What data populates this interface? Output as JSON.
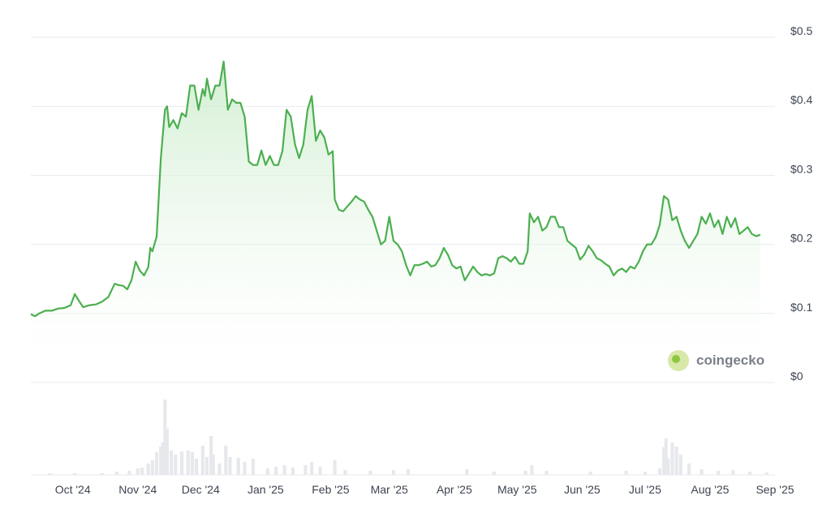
{
  "chart_data": {
    "type": "area",
    "title": "",
    "xlabel": "",
    "ylabel": "",
    "y_ticks": [
      "$0",
      "$0.1",
      "$0.2",
      "$0.3",
      "$0.4",
      "$0.5"
    ],
    "y_tick_values": [
      0,
      0.1,
      0.2,
      0.3,
      0.4,
      0.5
    ],
    "ylim": [
      0,
      0.5
    ],
    "x_ticks": [
      "Oct '24",
      "Nov '24",
      "Dec '24",
      "Jan '25",
      "Feb '25",
      "Mar '25",
      "Apr '25",
      "May '25",
      "Jun '25",
      "Jul '25",
      "Aug '25",
      "Sep '25"
    ],
    "x_tick_dates": [
      "2024-10-01",
      "2024-11-01",
      "2024-12-01",
      "2025-01-01",
      "2025-02-01",
      "2025-03-01",
      "2025-04-01",
      "2025-05-01",
      "2025-06-01",
      "2025-07-01",
      "2025-08-01",
      "2025-09-01"
    ],
    "xlim": [
      "2024-09-11",
      "2025-09-01"
    ],
    "grid": true,
    "line_color": "#4caf50",
    "area_color": "#e3f5e3",
    "volume_color": "#e6e8ec",
    "watermark": "coingecko",
    "series": [
      {
        "values": [
          [
            "2024-09-11",
            0.099
          ],
          [
            "2024-09-13",
            0.096
          ],
          [
            "2024-09-15",
            0.1
          ],
          [
            "2024-09-18",
            0.104
          ],
          [
            "2024-09-21",
            0.104
          ],
          [
            "2024-09-24",
            0.107
          ],
          [
            "2024-09-27",
            0.108
          ],
          [
            "2024-09-30",
            0.112
          ],
          [
            "2024-10-02",
            0.128
          ],
          [
            "2024-10-04",
            0.118
          ],
          [
            "2024-10-06",
            0.109
          ],
          [
            "2024-10-09",
            0.112
          ],
          [
            "2024-10-12",
            0.113
          ],
          [
            "2024-10-15",
            0.117
          ],
          [
            "2024-10-18",
            0.124
          ],
          [
            "2024-10-21",
            0.143
          ],
          [
            "2024-10-23",
            0.141
          ],
          [
            "2024-10-25",
            0.14
          ],
          [
            "2024-10-27",
            0.135
          ],
          [
            "2024-10-29",
            0.148
          ],
          [
            "2024-10-31",
            0.175
          ],
          [
            "2024-11-02",
            0.162
          ],
          [
            "2024-11-04",
            0.155
          ],
          [
            "2024-11-06",
            0.167
          ],
          [
            "2024-11-07",
            0.195
          ],
          [
            "2024-11-08",
            0.19
          ],
          [
            "2024-11-10",
            0.211
          ],
          [
            "2024-11-12",
            0.325
          ],
          [
            "2024-11-13",
            0.36
          ],
          [
            "2024-11-14",
            0.395
          ],
          [
            "2024-11-15",
            0.4
          ],
          [
            "2024-11-16",
            0.37
          ],
          [
            "2024-11-18",
            0.38
          ],
          [
            "2024-11-20",
            0.368
          ],
          [
            "2024-11-22",
            0.39
          ],
          [
            "2024-11-24",
            0.385
          ],
          [
            "2024-11-26",
            0.43
          ],
          [
            "2024-11-28",
            0.43
          ],
          [
            "2024-11-30",
            0.395
          ],
          [
            "2024-12-02",
            0.425
          ],
          [
            "2024-12-03",
            0.415
          ],
          [
            "2024-12-04",
            0.44
          ],
          [
            "2024-12-06",
            0.41
          ],
          [
            "2024-12-08",
            0.43
          ],
          [
            "2024-12-10",
            0.43
          ],
          [
            "2024-12-12",
            0.465
          ],
          [
            "2024-12-14",
            0.395
          ],
          [
            "2024-12-16",
            0.41
          ],
          [
            "2024-12-18",
            0.405
          ],
          [
            "2024-12-20",
            0.405
          ],
          [
            "2024-12-22",
            0.385
          ],
          [
            "2024-12-24",
            0.32
          ],
          [
            "2024-12-26",
            0.315
          ],
          [
            "2024-12-28",
            0.315
          ],
          [
            "2024-12-30",
            0.336
          ],
          [
            "2025-01-01",
            0.315
          ],
          [
            "2025-01-03",
            0.328
          ],
          [
            "2025-01-05",
            0.315
          ],
          [
            "2025-01-07",
            0.315
          ],
          [
            "2025-01-09",
            0.335
          ],
          [
            "2025-01-11",
            0.395
          ],
          [
            "2025-01-13",
            0.385
          ],
          [
            "2025-01-15",
            0.345
          ],
          [
            "2025-01-17",
            0.325
          ],
          [
            "2025-01-19",
            0.345
          ],
          [
            "2025-01-21",
            0.395
          ],
          [
            "2025-01-23",
            0.415
          ],
          [
            "2025-01-25",
            0.35
          ],
          [
            "2025-01-27",
            0.365
          ],
          [
            "2025-01-29",
            0.355
          ],
          [
            "2025-01-31",
            0.33
          ],
          [
            "2025-02-02",
            0.335
          ],
          [
            "2025-02-03",
            0.265
          ],
          [
            "2025-02-05",
            0.25
          ],
          [
            "2025-02-07",
            0.248
          ],
          [
            "2025-02-09",
            0.255
          ],
          [
            "2025-02-11",
            0.262
          ],
          [
            "2025-02-13",
            0.27
          ],
          [
            "2025-02-15",
            0.265
          ],
          [
            "2025-02-17",
            0.262
          ],
          [
            "2025-02-19",
            0.25
          ],
          [
            "2025-02-21",
            0.24
          ],
          [
            "2025-02-23",
            0.22
          ],
          [
            "2025-02-25",
            0.2
          ],
          [
            "2025-02-27",
            0.205
          ],
          [
            "2025-03-01",
            0.24
          ],
          [
            "2025-03-03",
            0.205
          ],
          [
            "2025-03-05",
            0.2
          ],
          [
            "2025-03-07",
            0.19
          ],
          [
            "2025-03-09",
            0.17
          ],
          [
            "2025-03-11",
            0.155
          ],
          [
            "2025-03-13",
            0.17
          ],
          [
            "2025-03-15",
            0.17
          ],
          [
            "2025-03-17",
            0.172
          ],
          [
            "2025-03-19",
            0.175
          ],
          [
            "2025-03-21",
            0.168
          ],
          [
            "2025-03-23",
            0.17
          ],
          [
            "2025-03-25",
            0.18
          ],
          [
            "2025-03-27",
            0.195
          ],
          [
            "2025-03-29",
            0.185
          ],
          [
            "2025-03-31",
            0.17
          ],
          [
            "2025-04-02",
            0.165
          ],
          [
            "2025-04-04",
            0.168
          ],
          [
            "2025-04-06",
            0.148
          ],
          [
            "2025-04-08",
            0.158
          ],
          [
            "2025-04-10",
            0.168
          ],
          [
            "2025-04-12",
            0.16
          ],
          [
            "2025-04-14",
            0.155
          ],
          [
            "2025-04-16",
            0.157
          ],
          [
            "2025-04-18",
            0.155
          ],
          [
            "2025-04-20",
            0.158
          ],
          [
            "2025-04-22",
            0.18
          ],
          [
            "2025-04-24",
            0.183
          ],
          [
            "2025-04-26",
            0.18
          ],
          [
            "2025-04-28",
            0.175
          ],
          [
            "2025-04-30",
            0.182
          ],
          [
            "2025-05-02",
            0.172
          ],
          [
            "2025-05-04",
            0.172
          ],
          [
            "2025-05-06",
            0.19
          ],
          [
            "2025-05-07",
            0.245
          ],
          [
            "2025-05-09",
            0.232
          ],
          [
            "2025-05-11",
            0.24
          ],
          [
            "2025-05-13",
            0.22
          ],
          [
            "2025-05-15",
            0.225
          ],
          [
            "2025-05-17",
            0.24
          ],
          [
            "2025-05-19",
            0.24
          ],
          [
            "2025-05-21",
            0.225
          ],
          [
            "2025-05-23",
            0.225
          ],
          [
            "2025-05-25",
            0.205
          ],
          [
            "2025-05-27",
            0.2
          ],
          [
            "2025-05-29",
            0.195
          ],
          [
            "2025-05-31",
            0.178
          ],
          [
            "2025-06-02",
            0.185
          ],
          [
            "2025-06-04",
            0.198
          ],
          [
            "2025-06-06",
            0.19
          ],
          [
            "2025-06-08",
            0.18
          ],
          [
            "2025-06-10",
            0.177
          ],
          [
            "2025-06-12",
            0.172
          ],
          [
            "2025-06-14",
            0.168
          ],
          [
            "2025-06-16",
            0.155
          ],
          [
            "2025-06-18",
            0.162
          ],
          [
            "2025-06-20",
            0.165
          ],
          [
            "2025-06-22",
            0.16
          ],
          [
            "2025-06-24",
            0.168
          ],
          [
            "2025-06-26",
            0.165
          ],
          [
            "2025-06-28",
            0.175
          ],
          [
            "2025-06-30",
            0.19
          ],
          [
            "2025-07-02",
            0.2
          ],
          [
            "2025-07-04",
            0.2
          ],
          [
            "2025-07-06",
            0.21
          ],
          [
            "2025-07-08",
            0.228
          ],
          [
            "2025-07-10",
            0.27
          ],
          [
            "2025-07-12",
            0.265
          ],
          [
            "2025-07-14",
            0.235
          ],
          [
            "2025-07-16",
            0.24
          ],
          [
            "2025-07-18",
            0.22
          ],
          [
            "2025-07-20",
            0.205
          ],
          [
            "2025-07-22",
            0.195
          ],
          [
            "2025-07-24",
            0.205
          ],
          [
            "2025-07-26",
            0.215
          ],
          [
            "2025-07-28",
            0.24
          ],
          [
            "2025-07-30",
            0.23
          ],
          [
            "2025-08-01",
            0.245
          ],
          [
            "2025-08-03",
            0.225
          ],
          [
            "2025-08-05",
            0.235
          ],
          [
            "2025-08-07",
            0.215
          ],
          [
            "2025-08-09",
            0.24
          ],
          [
            "2025-08-11",
            0.225
          ],
          [
            "2025-08-13",
            0.238
          ],
          [
            "2025-08-15",
            0.215
          ],
          [
            "2025-08-17",
            0.22
          ],
          [
            "2025-08-19",
            0.225
          ],
          [
            "2025-08-21",
            0.215
          ],
          [
            "2025-08-23",
            0.212
          ],
          [
            "2025-08-25",
            0.214
          ]
        ]
      }
    ],
    "volume": {
      "bar_width_days": 1,
      "values": [
        [
          "2024-09-20",
          0.02
        ],
        [
          "2024-10-02",
          0.02
        ],
        [
          "2024-10-15",
          0.02
        ],
        [
          "2024-10-22",
          0.04
        ],
        [
          "2024-10-28",
          0.05
        ],
        [
          "2024-11-01",
          0.08
        ],
        [
          "2024-11-03",
          0.09
        ],
        [
          "2024-11-06",
          0.14
        ],
        [
          "2024-11-08",
          0.18
        ],
        [
          "2024-11-10",
          0.28
        ],
        [
          "2024-11-12",
          0.35
        ],
        [
          "2024-11-13",
          0.4
        ],
        [
          "2024-11-14",
          0.93
        ],
        [
          "2024-11-15",
          0.57
        ],
        [
          "2024-11-17",
          0.3
        ],
        [
          "2024-11-19",
          0.25
        ],
        [
          "2024-11-22",
          0.29
        ],
        [
          "2024-11-25",
          0.3
        ],
        [
          "2024-11-27",
          0.28
        ],
        [
          "2024-11-29",
          0.2
        ],
        [
          "2024-12-02",
          0.36
        ],
        [
          "2024-12-04",
          0.22
        ],
        [
          "2024-12-06",
          0.48
        ],
        [
          "2024-12-07",
          0.25
        ],
        [
          "2024-12-10",
          0.14
        ],
        [
          "2024-12-13",
          0.36
        ],
        [
          "2024-12-15",
          0.22
        ],
        [
          "2024-12-19",
          0.21
        ],
        [
          "2024-12-22",
          0.16
        ],
        [
          "2024-12-26",
          0.2
        ],
        [
          "2025-01-02",
          0.08
        ],
        [
          "2025-01-06",
          0.1
        ],
        [
          "2025-01-10",
          0.12
        ],
        [
          "2025-01-14",
          0.09
        ],
        [
          "2025-01-20",
          0.12
        ],
        [
          "2025-01-23",
          0.16
        ],
        [
          "2025-01-27",
          0.1
        ],
        [
          "2025-02-03",
          0.18
        ],
        [
          "2025-02-08",
          0.06
        ],
        [
          "2025-02-20",
          0.05
        ],
        [
          "2025-03-03",
          0.06
        ],
        [
          "2025-03-10",
          0.07
        ],
        [
          "2025-04-07",
          0.07
        ],
        [
          "2025-04-20",
          0.04
        ],
        [
          "2025-05-05",
          0.05
        ],
        [
          "2025-05-08",
          0.12
        ],
        [
          "2025-05-15",
          0.05
        ],
        [
          "2025-06-05",
          0.04
        ],
        [
          "2025-06-22",
          0.05
        ],
        [
          "2025-07-01",
          0.04
        ],
        [
          "2025-07-08",
          0.08
        ],
        [
          "2025-07-10",
          0.34
        ],
        [
          "2025-07-11",
          0.45
        ],
        [
          "2025-07-12",
          0.2
        ],
        [
          "2025-07-14",
          0.4
        ],
        [
          "2025-07-16",
          0.35
        ],
        [
          "2025-07-18",
          0.25
        ],
        [
          "2025-07-22",
          0.14
        ],
        [
          "2025-07-28",
          0.07
        ],
        [
          "2025-08-05",
          0.05
        ],
        [
          "2025-08-12",
          0.06
        ],
        [
          "2025-08-20",
          0.04
        ],
        [
          "2025-08-28",
          0.03
        ]
      ]
    }
  }
}
